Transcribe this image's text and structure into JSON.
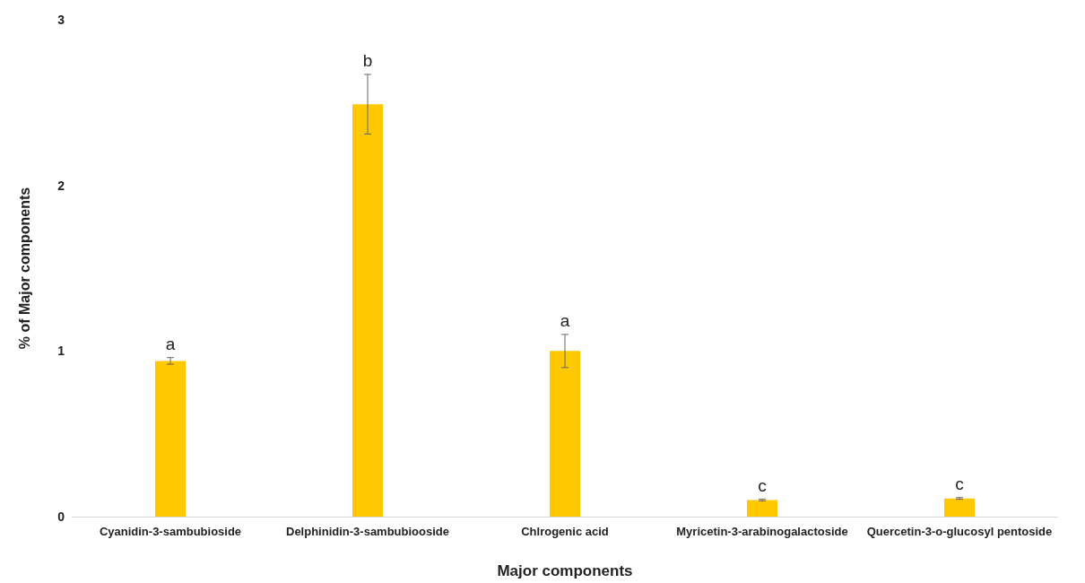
{
  "chart_data": {
    "type": "bar",
    "xlabel": "Major components",
    "ylabel": "% of Major components",
    "categories": [
      "Cyanidin-3-sambubioside",
      "Delphinidin-3-sambubiooside",
      "Chlrogenic acid",
      "Myricetin-3-arabinogalactoside",
      "Quercetin-3-o-glucosyl pentoside"
    ],
    "values": [
      0.94,
      2.49,
      1.0,
      0.1,
      0.11
    ],
    "errors": [
      0.02,
      0.18,
      0.1,
      0.005,
      0.005
    ],
    "value_labels": [
      "a",
      "b",
      "a",
      "c",
      "c"
    ],
    "color": "#ffc800",
    "ylim": [
      0,
      3
    ],
    "yticks": [
      0,
      1,
      2,
      3
    ],
    "grid": false,
    "legend": false
  }
}
